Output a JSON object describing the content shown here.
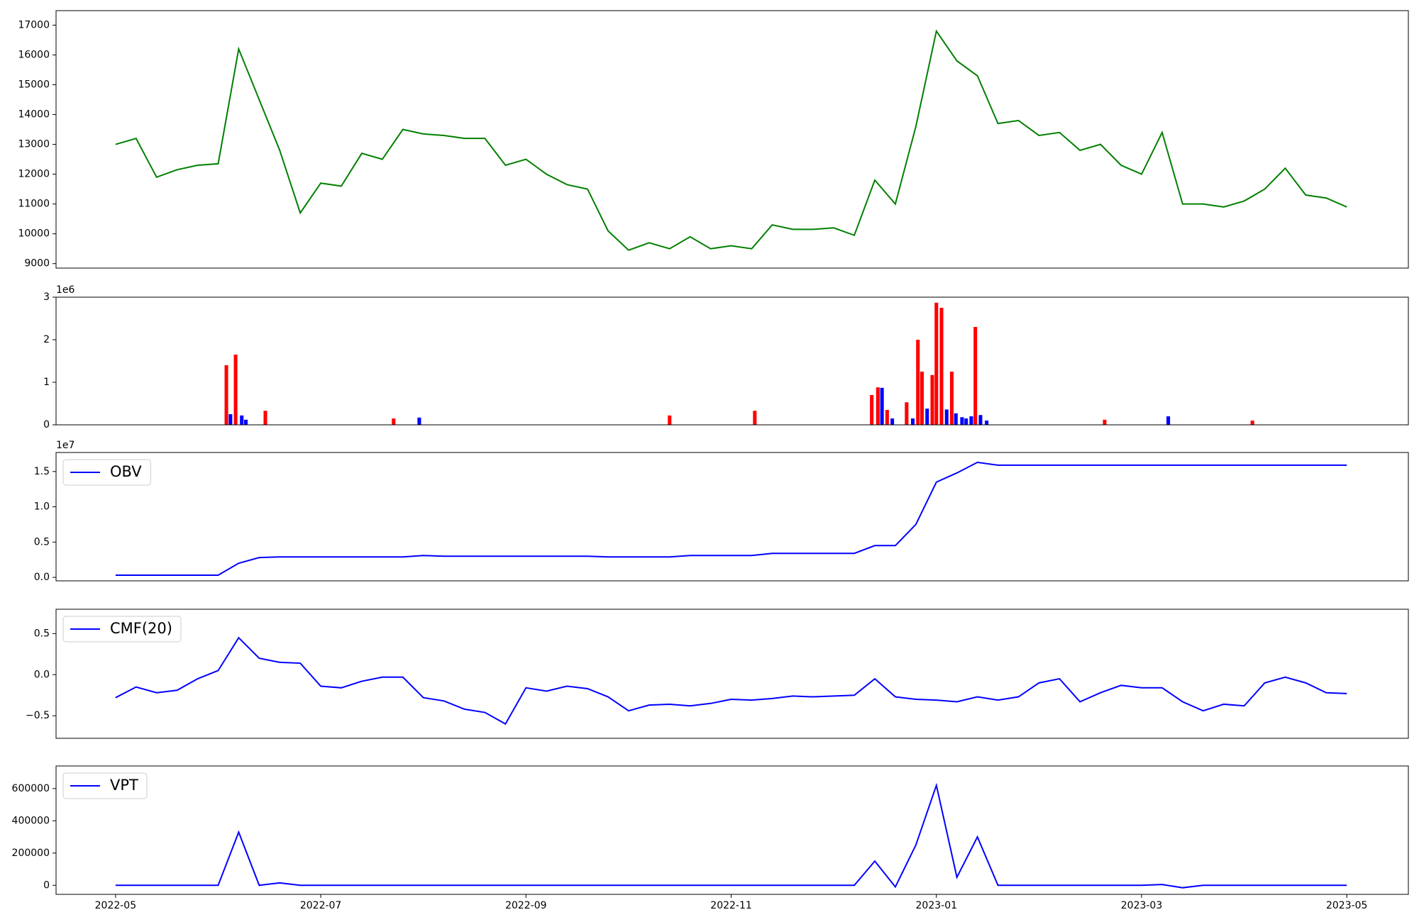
{
  "chart_data": [
    {
      "type": "line",
      "x": [
        5,
        5.2,
        5.4,
        5.6,
        5.8,
        6,
        6.2,
        6.4,
        6.6,
        6.8,
        7,
        7.2,
        7.4,
        7.6,
        7.8,
        8,
        8.2,
        8.4,
        8.6,
        8.8,
        9,
        9.2,
        9.4,
        9.6,
        9.8,
        10,
        10.2,
        10.4,
        10.6,
        10.8,
        11,
        11.2,
        11.4,
        11.6,
        11.8,
        12,
        12.2,
        12.4,
        12.6,
        12.8,
        13,
        13.2,
        13.4,
        13.6,
        13.8,
        14,
        14.2,
        14.4,
        14.6,
        14.8,
        15,
        15.2,
        15.4,
        15.6,
        15.8,
        16,
        16.2,
        16.4,
        16.6,
        16.8,
        17
      ],
      "series": [
        {
          "color": "#008000",
          "values": [
            13000,
            13200,
            11900,
            12150,
            12300,
            12350,
            16200,
            14500,
            12800,
            10700,
            11700,
            11600,
            12700,
            12500,
            13500,
            13350,
            13300,
            13200,
            13200,
            12300,
            12500,
            12000,
            11650,
            11500,
            10100,
            9450,
            9700,
            9500,
            9900,
            9500,
            9600,
            9500,
            10300,
            10150,
            10150,
            10200,
            9950,
            11800,
            11000,
            13600,
            16800,
            15800,
            15300,
            13700,
            13800,
            13300,
            13400,
            12800,
            13000,
            12300,
            12000,
            13400,
            11000,
            11000,
            10900,
            11100,
            11500,
            12200,
            11300,
            11200,
            10900
          ]
        }
      ],
      "xlim": [
        4.42,
        17.6
      ],
      "ylim": [
        8850,
        17486
      ],
      "yticks": [
        9000,
        10000,
        11000,
        12000,
        13000,
        14000,
        15000,
        16000,
        17000
      ]
    },
    {
      "type": "bar",
      "y_offset_label": "1e6",
      "series": [
        {
          "color": "#ff0000",
          "x": [
            6.08,
            6.17,
            6.46,
            7.71,
            10.4,
            11.23,
            12.37,
            12.43,
            12.52,
            12.71,
            12.82,
            12.86,
            12.96,
            13.0,
            13.05,
            13.15,
            13.38,
            14.64,
            16.08
          ],
          "values": [
            1.4,
            1.65,
            0.33,
            0.15,
            0.22,
            0.33,
            0.7,
            0.88,
            0.35,
            0.53,
            2.0,
            1.25,
            1.17,
            2.87,
            2.75,
            1.25,
            2.3,
            0.12,
            0.1
          ]
        },
        {
          "color": "#0000ff",
          "x": [
            6.12,
            6.23,
            6.27,
            7.96,
            12.47,
            12.57,
            12.77,
            12.91,
            13.1,
            13.19,
            13.25,
            13.29,
            13.34,
            13.43,
            13.49,
            15.26
          ],
          "values": [
            0.25,
            0.22,
            0.12,
            0.17,
            0.87,
            0.15,
            0.15,
            0.38,
            0.36,
            0.27,
            0.18,
            0.15,
            0.2,
            0.23,
            0.1,
            0.2
          ]
        }
      ],
      "xlim": [
        4.42,
        17.6
      ],
      "ylim": [
        0,
        3
      ],
      "yticks": [
        0,
        1,
        2,
        3
      ]
    },
    {
      "type": "line",
      "y_offset_label": "1e7",
      "legend": "upper left",
      "x": [
        5,
        5.2,
        5.4,
        5.6,
        5.8,
        6,
        6.2,
        6.4,
        6.6,
        6.8,
        7,
        7.2,
        7.4,
        7.6,
        7.8,
        8,
        8.2,
        8.4,
        8.6,
        8.8,
        9,
        9.2,
        9.4,
        9.6,
        9.8,
        10,
        10.2,
        10.4,
        10.6,
        10.8,
        11,
        11.2,
        11.4,
        11.6,
        11.8,
        12,
        12.2,
        12.4,
        12.6,
        12.8,
        13,
        13.2,
        13.4,
        13.6,
        13.8,
        14,
        14.2,
        14.4,
        14.6,
        14.8,
        15,
        15.2,
        15.4,
        15.6,
        15.8,
        16,
        16.2,
        16.4,
        16.6,
        16.8,
        17
      ],
      "series": [
        {
          "name": "OBV",
          "color": "#0000ff",
          "values": [
            0.03,
            0.03,
            0.03,
            0.03,
            0.03,
            0.03,
            0.2,
            0.28,
            0.29,
            0.29,
            0.29,
            0.29,
            0.29,
            0.29,
            0.29,
            0.31,
            0.3,
            0.3,
            0.3,
            0.3,
            0.3,
            0.3,
            0.3,
            0.3,
            0.29,
            0.29,
            0.29,
            0.29,
            0.31,
            0.31,
            0.31,
            0.31,
            0.34,
            0.34,
            0.34,
            0.34,
            0.34,
            0.45,
            0.45,
            0.75,
            1.35,
            1.48,
            1.63,
            1.59,
            1.59,
            1.59,
            1.59,
            1.59,
            1.59,
            1.59,
            1.59,
            1.59,
            1.59,
            1.59,
            1.59,
            1.59,
            1.59,
            1.59,
            1.59,
            1.59,
            1.59
          ]
        }
      ],
      "xlim": [
        4.42,
        17.6
      ],
      "ylim": [
        -0.05,
        1.77
      ],
      "yticks": [
        {
          "value": 0,
          "label": "0.0"
        },
        {
          "value": 0.5,
          "label": "0.5"
        },
        {
          "value": 1,
          "label": "1.0"
        },
        {
          "value": 1.5,
          "label": "1.5"
        }
      ]
    },
    {
      "type": "line",
      "legend": "upper left",
      "x": [
        5,
        5.2,
        5.4,
        5.6,
        5.8,
        6,
        6.2,
        6.4,
        6.6,
        6.8,
        7,
        7.2,
        7.4,
        7.6,
        7.8,
        8,
        8.2,
        8.4,
        8.6,
        8.8,
        9,
        9.2,
        9.4,
        9.6,
        9.8,
        10,
        10.2,
        10.4,
        10.6,
        10.8,
        11,
        11.2,
        11.4,
        11.6,
        11.8,
        12,
        12.2,
        12.4,
        12.6,
        12.8,
        13,
        13.2,
        13.4,
        13.6,
        13.8,
        14,
        14.2,
        14.4,
        14.6,
        14.8,
        15,
        15.2,
        15.4,
        15.6,
        15.8,
        16,
        16.2,
        16.4,
        16.6,
        16.8,
        17
      ],
      "series": [
        {
          "name": "CMF(20)",
          "color": "#0000ff",
          "values": [
            -0.28,
            -0.15,
            -0.22,
            -0.19,
            -0.05,
            0.05,
            0.45,
            0.2,
            0.15,
            0.14,
            -0.14,
            -0.16,
            -0.08,
            -0.03,
            -0.03,
            -0.28,
            -0.32,
            -0.42,
            -0.46,
            -0.6,
            -0.16,
            -0.2,
            -0.14,
            -0.17,
            -0.27,
            -0.44,
            -0.37,
            -0.36,
            -0.38,
            -0.35,
            -0.3,
            -0.31,
            -0.29,
            -0.26,
            -0.27,
            -0.26,
            -0.25,
            -0.05,
            -0.27,
            -0.3,
            -0.31,
            -0.33,
            -0.27,
            -0.31,
            -0.27,
            -0.1,
            -0.05,
            -0.33,
            -0.22,
            -0.13,
            -0.16,
            -0.16,
            -0.33,
            -0.44,
            -0.36,
            -0.38,
            -0.1,
            -0.03,
            -0.1,
            -0.22,
            -0.23
          ]
        }
      ],
      "xlim": [
        4.42,
        17.6
      ],
      "ylim": [
        -0.775,
        0.797
      ],
      "yticks": [
        {
          "value": -0.5,
          "label": "−0.5"
        },
        {
          "value": 0,
          "label": "0.0"
        },
        {
          "value": 0.5,
          "label": "0.5"
        }
      ]
    },
    {
      "type": "line",
      "legend": "upper left",
      "x": [
        5,
        5.2,
        5.4,
        5.6,
        5.8,
        6,
        6.2,
        6.4,
        6.6,
        6.8,
        7,
        7.2,
        7.4,
        7.6,
        7.8,
        8,
        8.2,
        8.4,
        8.6,
        8.8,
        9,
        9.2,
        9.4,
        9.6,
        9.8,
        10,
        10.2,
        10.4,
        10.6,
        10.8,
        11,
        11.2,
        11.4,
        11.6,
        11.8,
        12,
        12.2,
        12.4,
        12.6,
        12.8,
        13,
        13.2,
        13.4,
        13.6,
        13.8,
        14,
        14.2,
        14.4,
        14.6,
        14.8,
        15,
        15.2,
        15.4,
        15.6,
        15.8,
        16,
        16.2,
        16.4,
        16.6,
        16.8,
        17
      ],
      "series": [
        {
          "name": "VPT",
          "color": "#0000ff",
          "values": [
            0,
            0,
            0,
            0,
            0,
            0,
            330000,
            0,
            15000,
            0,
            0,
            0,
            0,
            0,
            0,
            0,
            0,
            0,
            0,
            0,
            0,
            0,
            0,
            0,
            0,
            0,
            0,
            0,
            0,
            0,
            0,
            0,
            0,
            0,
            0,
            0,
            0,
            150000,
            -10000,
            250000,
            620000,
            50000,
            300000,
            0,
            0,
            0,
            0,
            0,
            0,
            0,
            0,
            5000,
            -15000,
            0,
            0,
            0,
            0,
            0,
            0,
            0,
            0
          ]
        }
      ],
      "xlim": [
        4.42,
        17.6
      ],
      "ylim": [
        -56000,
        740000
      ],
      "yticks": [
        0,
        200000,
        400000,
        600000
      ],
      "xticks": [
        {
          "value": 5,
          "label": "2022-05"
        },
        {
          "value": 7,
          "label": "2022-07"
        },
        {
          "value": 9,
          "label": "2022-09"
        },
        {
          "value": 11,
          "label": "2022-11"
        },
        {
          "value": 13,
          "label": "2023-01"
        },
        {
          "value": 15,
          "label": "2023-03"
        },
        {
          "value": 17,
          "label": "2023-05"
        }
      ]
    }
  ]
}
